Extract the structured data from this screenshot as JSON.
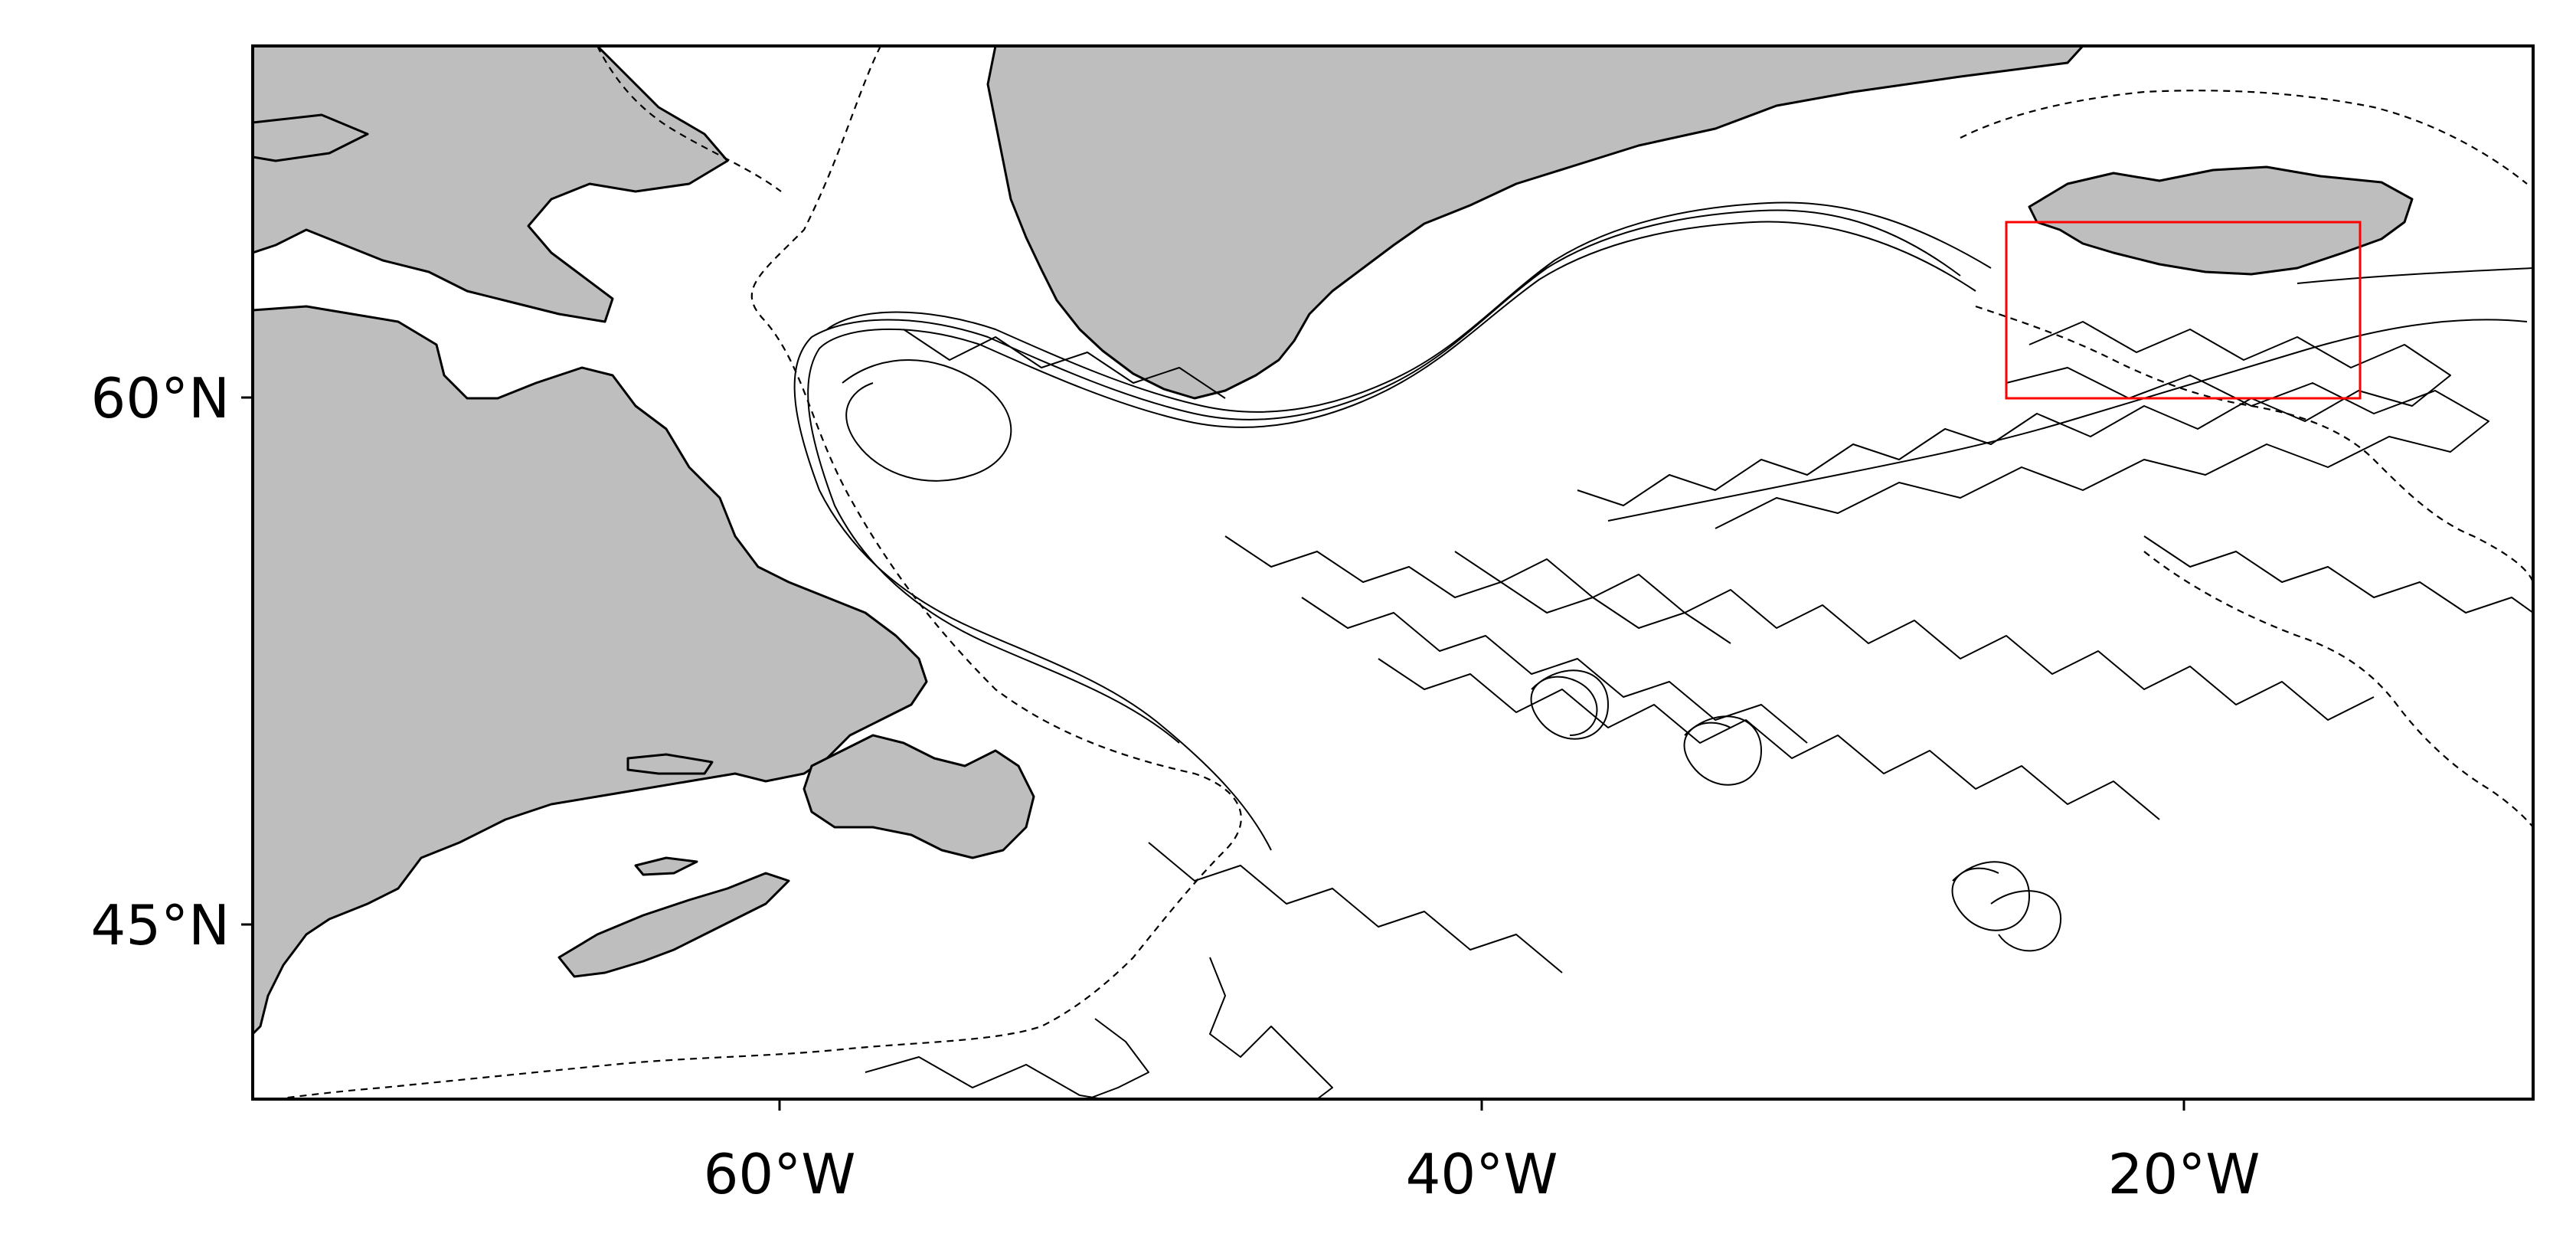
{
  "map": {
    "extent": {
      "lon_min": -75,
      "lon_max": -10,
      "lat_min": 40,
      "lat_max": 70
    },
    "land_color": "#bebebe",
    "coastline_color": "#000000",
    "track_color": "#000000",
    "highlight_box": {
      "lon_min": -25,
      "lon_max": -15,
      "lat_min": 60,
      "lat_max": 65,
      "color": "#ff0000"
    },
    "x_ticks": [
      {
        "lon": -60,
        "label": "60°W"
      },
      {
        "lon": -40,
        "label": "40°W"
      },
      {
        "lon": -20,
        "label": "20°W"
      }
    ],
    "y_ticks": [
      {
        "lat": 60,
        "label": "60°N"
      },
      {
        "lat": 45,
        "label": "45°N"
      }
    ]
  }
}
